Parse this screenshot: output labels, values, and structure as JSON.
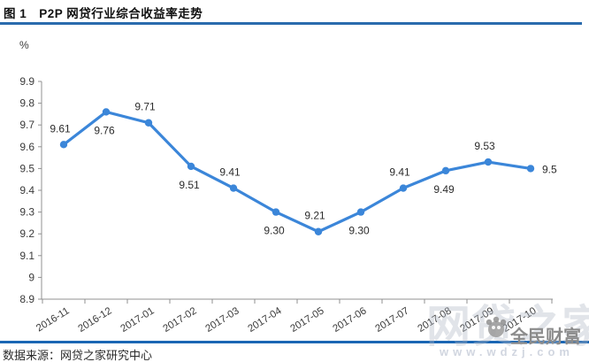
{
  "header": {
    "title": "图 1　P2P 网贷行业综合收益率走势"
  },
  "chart_data": {
    "type": "line",
    "title": "P2P 网贷行业综合收益率走势",
    "unit_label": "%",
    "categories": [
      "2016-11",
      "2016-12",
      "2017-01",
      "2017-02",
      "2017-03",
      "2017-04",
      "2017-05",
      "2017-06",
      "2017-07",
      "2017-08",
      "2017-09",
      "2017-10"
    ],
    "values": [
      9.61,
      9.76,
      9.71,
      9.51,
      9.41,
      9.3,
      9.21,
      9.3,
      9.41,
      9.49,
      9.53,
      9.5
    ],
    "point_labels": [
      "9.61",
      "9.76",
      "9.71",
      "9.51",
      "9.41",
      "9.30",
      "9.21",
      "9.30",
      "9.41",
      "9.49",
      "9.53",
      "9.5"
    ],
    "ylim": [
      8.9,
      9.9
    ],
    "ytick_labels": [
      "9.9",
      "9.8",
      "9.7",
      "9.6",
      "9.5",
      "9.4",
      "9.3",
      "9.2",
      "9.1",
      "9",
      "8.9"
    ],
    "grid": false,
    "legend": "none",
    "line_color": "#3B86D9",
    "axis_color": "#909090",
    "label_color": "#2c2c2c"
  },
  "footer": {
    "source": "数据来源：网贷之家研究中心"
  },
  "watermark": {
    "brand_large": "网贷之家",
    "brand_small": "全民财富",
    "url": "www.wdzj.com"
  },
  "colors": {
    "divider_blue": "#2A6BAD",
    "footer_line_blue": "#1A66B4"
  }
}
